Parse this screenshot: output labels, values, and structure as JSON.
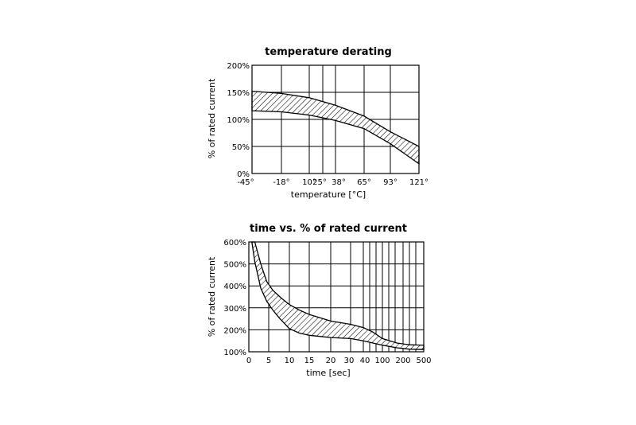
{
  "chart_data": [
    {
      "type": "area",
      "title": "temperature derating",
      "xlabel": "temperature [°C]",
      "ylabel": "% of rated current",
      "x_ticks": [
        "-45°",
        "-18°",
        "10°",
        "25°",
        "38°",
        "65°",
        "93°",
        "121°"
      ],
      "y_ticks": [
        "0%",
        "50%",
        "100%",
        "150%",
        "200%"
      ],
      "ylim": [
        0,
        200
      ],
      "x_ordinal": true,
      "grid": true,
      "series": [
        {
          "x": [
            0,
            1,
            2,
            3,
            4,
            5,
            6,
            7
          ],
          "values": [
            152,
            148,
            140,
            133,
            126,
            106,
            77,
            50
          ]
        },
        {
          "x": [
            0,
            1,
            2,
            3,
            4,
            5,
            6,
            7
          ],
          "values": [
            116,
            114,
            108,
            103,
            98,
            83,
            55,
            18
          ]
        }
      ]
    },
    {
      "type": "area",
      "title": "time vs. % of rated current",
      "xlabel": "time [sec]",
      "ylabel": "% of rated current",
      "x_ticks": [
        "0",
        "5",
        "10",
        "15",
        "20",
        "30",
        "40",
        "100",
        "200",
        "500"
      ],
      "y_ticks": [
        "100%",
        "200%",
        "300%",
        "400%",
        "500%",
        "600%"
      ],
      "ylim": [
        100,
        600
      ],
      "x_ordinal": true,
      "grid": true,
      "series": [
        {
          "x": [
            0.3,
            0.6,
            0.9,
            1.2,
            1.6,
            2.0,
            2.5,
            3.0,
            4.0,
            5.0,
            6.0,
            6.5,
            7.0,
            7.7,
            8.3,
            9.0,
            9.5
          ],
          "values": [
            600,
            500,
            420,
            380,
            345,
            315,
            290,
            270,
            240,
            225,
            210,
            190,
            160,
            140,
            132,
            130,
            130
          ]
        },
        {
          "x": [
            0.15,
            0.3,
            0.6,
            0.9,
            1.2,
            1.5,
            2.0,
            2.5,
            3.0,
            3.5,
            4.0,
            5.0,
            6.0,
            6.5,
            7.0,
            7.7,
            8.3,
            9.0,
            9.5
          ],
          "values": [
            600,
            510,
            390,
            330,
            290,
            255,
            205,
            185,
            175,
            170,
            165,
            160,
            150,
            140,
            130,
            118,
            112,
            110,
            110
          ]
        }
      ]
    }
  ]
}
